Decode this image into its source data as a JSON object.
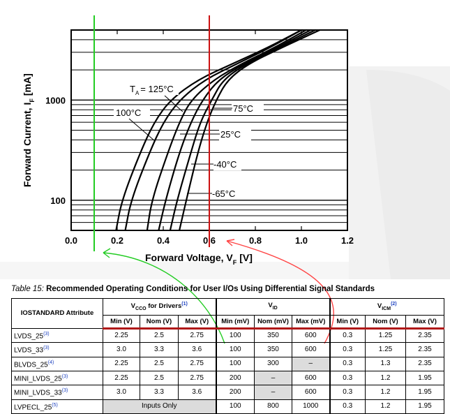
{
  "chart_data": {
    "type": "line",
    "xlabel": "Forward Voltage, V",
    "xlabel_sub": "F",
    "xlabel_unit": "[V]",
    "ylabel": "Forward Current, I",
    "ylabel_sub": "F",
    "ylabel_unit": "[mA]",
    "xlim": [
      0.0,
      1.2
    ],
    "ylim": [
      50,
      5000
    ],
    "y_scale": "log",
    "x_ticks": [
      "0.0",
      "0.2",
      "0.4",
      "0.6",
      "0.8",
      "1.0",
      "1.2"
    ],
    "x_tick_values": [
      0.0,
      0.2,
      0.4,
      0.6,
      0.8,
      1.0,
      1.2
    ],
    "y_ticks": [
      "100",
      "1000"
    ],
    "y_tick_values": [
      100,
      1000
    ],
    "grid": "horizontal",
    "series": [
      {
        "name": "125°C",
        "points": [
          [
            0.195,
            50
          ],
          [
            0.22,
            100
          ],
          [
            0.3,
            300
          ],
          [
            0.36,
            600
          ],
          [
            0.43,
            1000
          ],
          [
            0.55,
            1600
          ],
          [
            0.7,
            2300
          ],
          [
            0.85,
            3300
          ],
          [
            1.0,
            5000
          ]
        ]
      },
      {
        "name": "100°C",
        "points": [
          [
            0.235,
            50
          ],
          [
            0.26,
            100
          ],
          [
            0.34,
            300
          ],
          [
            0.4,
            600
          ],
          [
            0.47,
            1000
          ],
          [
            0.58,
            1600
          ],
          [
            0.72,
            2300
          ],
          [
            0.86,
            3300
          ],
          [
            1.0,
            5000
          ]
        ]
      },
      {
        "name": "75°C",
        "points": [
          [
            0.33,
            50
          ],
          [
            0.35,
            100
          ],
          [
            0.42,
            300
          ],
          [
            0.47,
            600
          ],
          [
            0.52,
            1000
          ],
          [
            0.62,
            1600
          ],
          [
            0.74,
            2300
          ],
          [
            0.88,
            3300
          ],
          [
            1.02,
            5000
          ]
        ]
      },
      {
        "name": "25°C",
        "points": [
          [
            0.38,
            50
          ],
          [
            0.41,
            100
          ],
          [
            0.47,
            300
          ],
          [
            0.52,
            600
          ],
          [
            0.57,
            1000
          ],
          [
            0.64,
            1600
          ],
          [
            0.75,
            2300
          ],
          [
            0.89,
            3300
          ],
          [
            1.04,
            5000
          ]
        ]
      },
      {
        "name": "-40°C",
        "points": [
          [
            0.43,
            50
          ],
          [
            0.46,
            100
          ],
          [
            0.52,
            300
          ],
          [
            0.56,
            600
          ],
          [
            0.61,
            1000
          ],
          [
            0.66,
            1600
          ],
          [
            0.76,
            2300
          ],
          [
            0.9,
            3300
          ],
          [
            1.06,
            5000
          ]
        ]
      },
      {
        "name": "-65°C",
        "points": [
          [
            0.47,
            50
          ],
          [
            0.5,
            100
          ],
          [
            0.55,
            300
          ],
          [
            0.59,
            600
          ],
          [
            0.63,
            1000
          ],
          [
            0.68,
            1600
          ],
          [
            0.77,
            2300
          ],
          [
            0.91,
            3300
          ],
          [
            1.08,
            5000
          ]
        ]
      }
    ],
    "annotations": {
      "ta_prefix": "T",
      "ta_sub": "A",
      "ta_value": "= 125°C",
      "l100": "100°C",
      "l75": "75°C",
      "l25": "25°C",
      "lm40": "-40°C",
      "lm65": "-65°C"
    },
    "markers": {
      "green_x": 0.1,
      "red_x": 0.6,
      "green_color": "#22cc22",
      "red_color": "#cc1111",
      "arrow_color": "#ff4444"
    }
  },
  "table": {
    "caption_num": "Table 15:",
    "caption_title": "Recommended Operating Conditions for User I/Os Using Differential Signal Standards",
    "header": {
      "attr": "IOSTANDARD Attribute",
      "vcco": "V",
      "vcco_sub": "CCO",
      "vcco_rest": " for Drivers",
      "vcco_note": "(1)",
      "vid": "V",
      "vid_sub": "ID",
      "vicm": "V",
      "vicm_sub": "ICM",
      "vicm_note": "(2)"
    },
    "subheaders": [
      "Min (V)",
      "Nom (V)",
      "Max (V)",
      "Min (mV)",
      "Nom (mV)",
      "Max (mV)",
      "Min (V)",
      "Nom (V)",
      "Max (V)"
    ],
    "rows": [
      {
        "attr": "LVDS_25",
        "note": "(3)",
        "cells": [
          "2.25",
          "2.5",
          "2.75",
          "100",
          "350",
          "600",
          "0.3",
          "1.25",
          "2.35"
        ]
      },
      {
        "attr": "LVDS_33",
        "note": "(3)",
        "cells": [
          "3.0",
          "3.3",
          "3.6",
          "100",
          "350",
          "600",
          "0.3",
          "1.25",
          "2.35"
        ]
      },
      {
        "attr": "BLVDS_25",
        "note": "(4)",
        "cells": [
          "2.25",
          "2.5",
          "2.75",
          "100",
          "300",
          "–",
          "0.3",
          "1.3",
          "2.35"
        ]
      },
      {
        "attr": "MINI_LVDS_25",
        "note": "(3)",
        "cells": [
          "2.25",
          "2.5",
          "2.75",
          "200",
          "–",
          "600",
          "0.3",
          "1.2",
          "1.95"
        ]
      },
      {
        "attr": "MINI_LVDS_33",
        "note": "(3)",
        "cells": [
          "3.0",
          "3.3",
          "3.6",
          "200",
          "–",
          "600",
          "0.3",
          "1.2",
          "1.95"
        ]
      },
      {
        "attr": "LVPECL_25",
        "note": "(5)",
        "inputs_only": "Inputs Only",
        "cells": [
          "100",
          "800",
          "1000",
          "0.3",
          "1.2",
          "1.95"
        ]
      }
    ]
  }
}
